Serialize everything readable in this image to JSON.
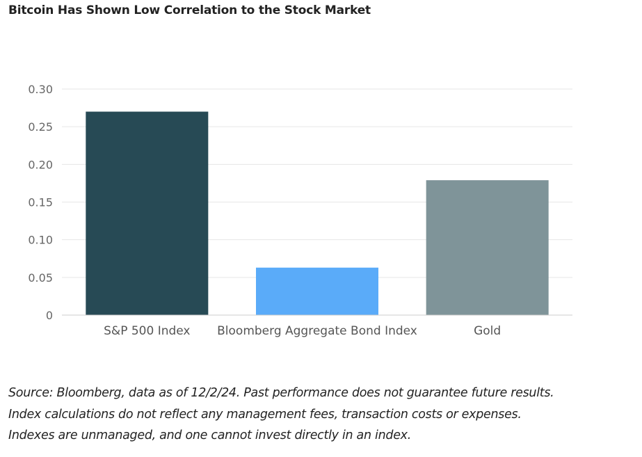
{
  "chart_data": {
    "type": "bar",
    "title": "Bitcoin Has Shown Low Correlation to the Stock Market",
    "categories": [
      "S&P 500 Index",
      "Bloomberg Aggregate Bond Index",
      "Gold"
    ],
    "values": [
      0.27,
      0.063,
      0.179
    ],
    "colors": [
      "#274a55",
      "#5aabf9",
      "#7f9499"
    ],
    "ylim": [
      0,
      0.3
    ],
    "yticks": [
      0,
      0.05,
      0.1,
      0.15,
      0.2,
      0.25,
      0.3
    ],
    "ytick_labels": [
      "0",
      "0.05",
      "0.10",
      "0.15",
      "0.20",
      "0.25",
      "0.30"
    ],
    "xlabel": "",
    "ylabel": "",
    "grid": true,
    "legend": "none"
  },
  "footnote": {
    "lines": [
      "Source: Bloomberg, data as of 12/2/24. Past performance does not guarantee future results.",
      "Index calculations do not reflect any management fees, transaction costs or expenses.",
      "Indexes are unmanaged, and one cannot invest directly in an index."
    ]
  }
}
